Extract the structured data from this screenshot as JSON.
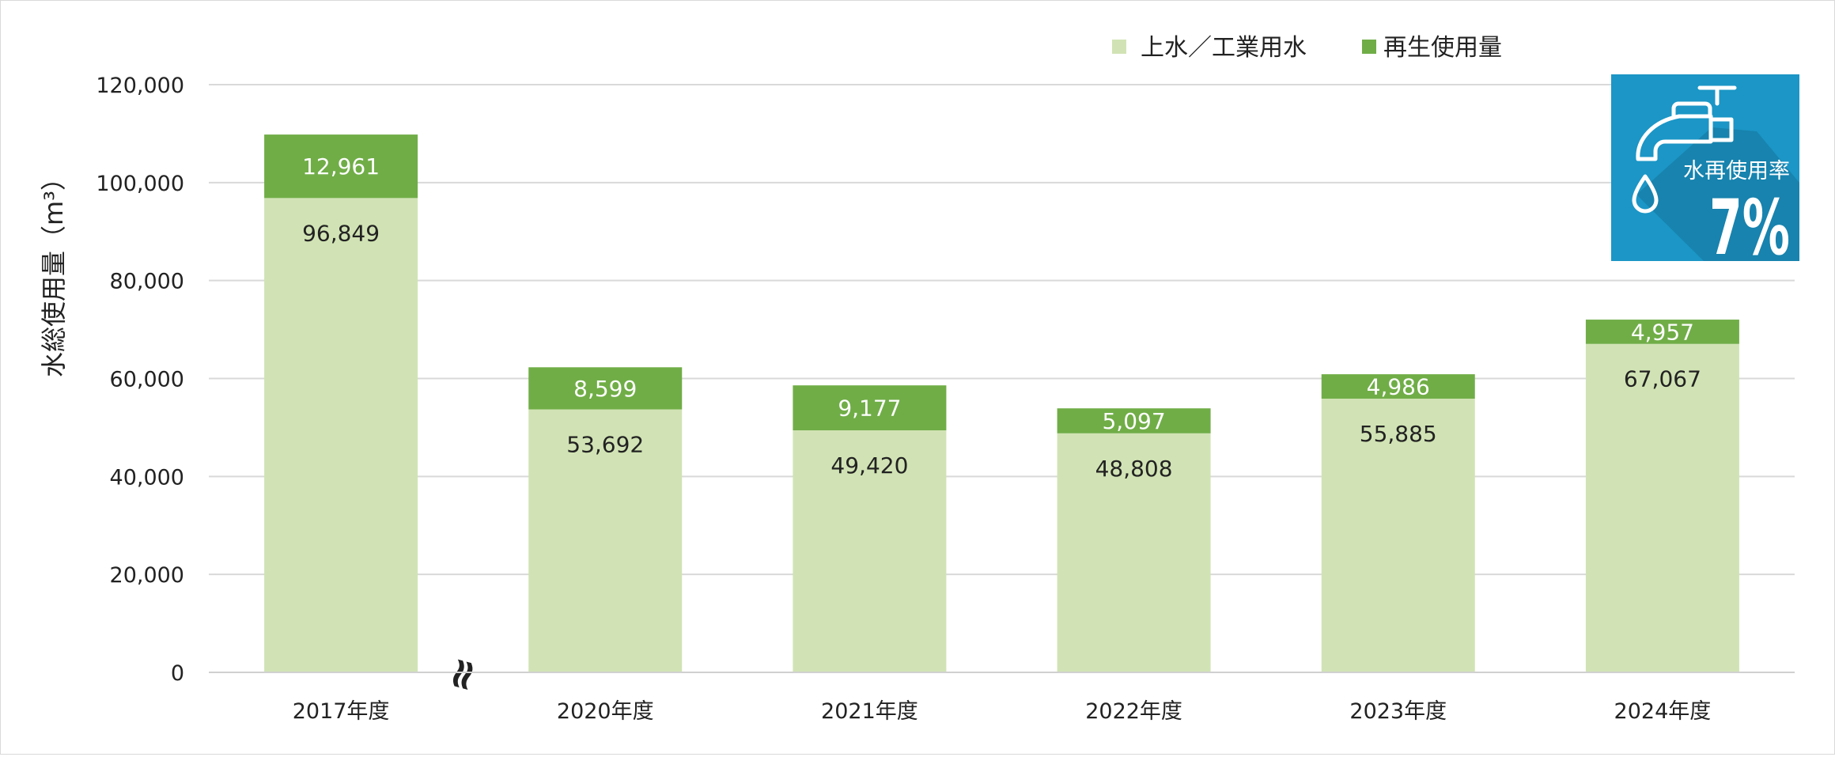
{
  "chart_data": {
    "type": "bar",
    "stacked": true,
    "categories": [
      "2017年度",
      "2020年度",
      "2021年度",
      "2022年度",
      "2023年度",
      "2024年度"
    ],
    "series": [
      {
        "name": "上水／工業用水",
        "color": "#d1e3b4",
        "values": [
          96849,
          53692,
          49420,
          48808,
          55885,
          67067
        ],
        "labels": [
          "96,849",
          "53,692",
          "49,420",
          "48,808",
          "55,885",
          "67,067"
        ]
      },
      {
        "name": "再生使用量",
        "color": "#70ad47",
        "values": [
          12961,
          8599,
          9177,
          5097,
          4986,
          4957
        ],
        "labels": [
          "12,961",
          "8,599",
          "9,177",
          "5,097",
          "4,986",
          "4,957"
        ]
      }
    ],
    "ylabel": "水総使用量（m³）",
    "ylim": [
      0,
      120000
    ],
    "yticks": [
      "0",
      "20,000",
      "40,000",
      "60,000",
      "80,000",
      "100,000",
      "120,000"
    ],
    "grid": true,
    "legend_position": "top-right",
    "axis_break_symbol": "≈"
  },
  "badge": {
    "label": "水再使用率",
    "value": "7%",
    "icon": "faucet-icon",
    "background": "#1b96c6"
  }
}
